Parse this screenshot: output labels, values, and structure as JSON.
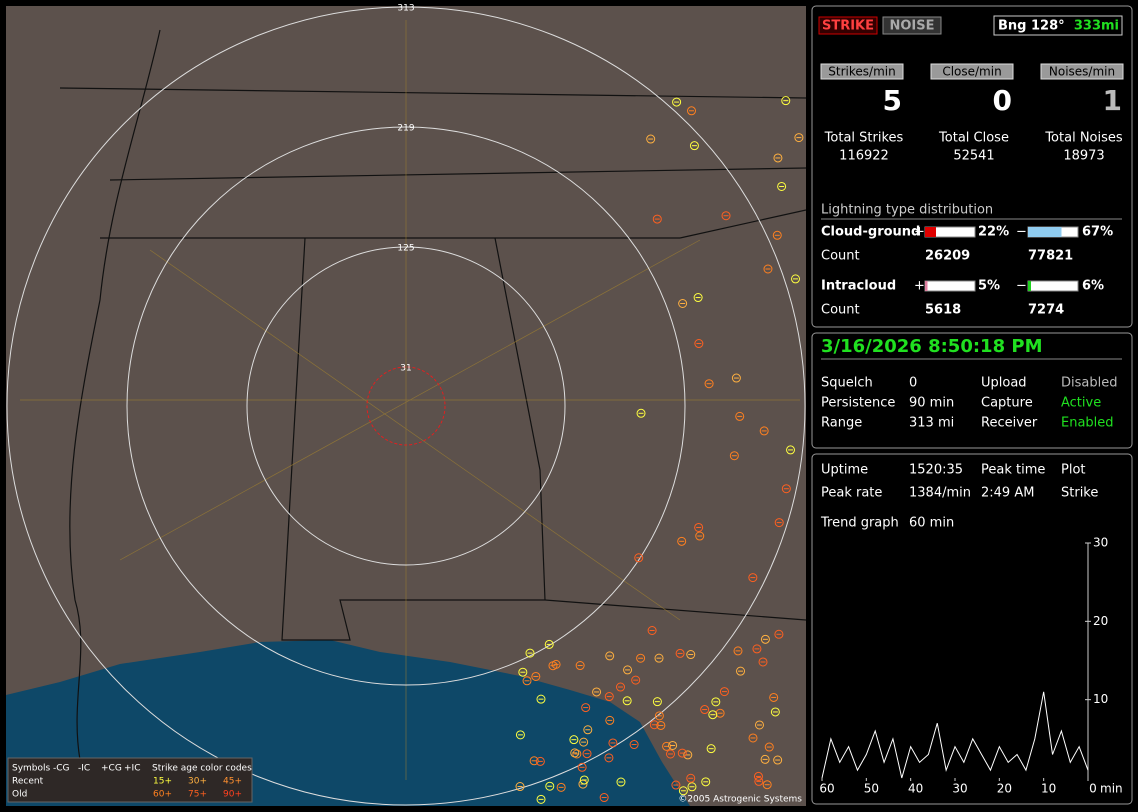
{
  "map": {
    "rings": [
      "313",
      "219",
      "125",
      "31"
    ],
    "legend": {
      "header": [
        "Symbols",
        "-CG",
        "-IC",
        "+CG",
        "+IC"
      ],
      "age_title": "Strike age color codes",
      "recent": "Recent",
      "old": "Old",
      "ages_recent": [
        "15+",
        "30+",
        "45+"
      ],
      "ages_old": [
        "60+",
        "75+",
        "90+"
      ]
    },
    "copyright": "©2005 Astrogenic Systems"
  },
  "status": {
    "strike": "STRIKE",
    "noise": "NOISE",
    "bearing": "Bng 128°",
    "distance": "333mi"
  },
  "rates": [
    {
      "label": "Strikes/min",
      "value": "5",
      "total_label": "Total Strikes",
      "total": "116922"
    },
    {
      "label": "Close/min",
      "value": "0",
      "total_label": "Total Close",
      "total": "52541"
    },
    {
      "label": "Noises/min",
      "value": "1",
      "total_label": "Total Noises",
      "total": "18973"
    }
  ],
  "distribution": {
    "title": "Lightning type distribution",
    "plus": "+",
    "minus": "−",
    "count_label": "Count",
    "rows": [
      {
        "name": "Cloud-ground",
        "pos": {
          "value": 22,
          "label": "22%"
        },
        "neg": {
          "value": 67,
          "label": "67%"
        },
        "pos_count": "26209",
        "neg_count": "77821"
      },
      {
        "name": "Intracloud",
        "pos": {
          "value": 5,
          "label": "5%"
        },
        "neg": {
          "value": 6,
          "label": "6%"
        },
        "pos_count": "5618",
        "neg_count": "7274"
      }
    ]
  },
  "datetime": "3/16/2026 8:50:18 PM",
  "settings": [
    [
      "Squelch",
      "0",
      "Upload",
      "Disabled"
    ],
    [
      "Persistence",
      "90 min",
      "Capture",
      "Active"
    ],
    [
      "Range",
      "313 mi",
      "Receiver",
      "Enabled"
    ]
  ],
  "stats": [
    [
      "Uptime",
      "1520:35",
      "Peak time",
      "Plot"
    ],
    [
      "Peak rate",
      "1384/min",
      "2:49 AM",
      "Strike"
    ]
  ],
  "trend": [
    "Trend graph",
    "60 min"
  ],
  "chart_data": {
    "type": "line",
    "x": [
      60,
      58,
      56,
      54,
      52,
      50,
      48,
      46,
      44,
      42,
      40,
      38,
      36,
      34,
      32,
      30,
      28,
      26,
      24,
      22,
      20,
      18,
      16,
      14,
      12,
      10,
      8,
      6,
      4,
      2,
      0
    ],
    "series": [
      {
        "color": "#ffffff",
        "values": [
          0,
          5,
          2,
          4,
          1,
          3,
          6,
          2,
          5,
          0,
          4,
          2,
          3,
          7,
          1,
          4,
          2,
          5,
          3,
          1,
          4,
          2,
          3,
          1,
          5,
          11,
          3,
          6,
          2,
          4,
          1
        ]
      }
    ],
    "xlim": [
      60,
      0
    ],
    "ylim": [
      0,
      30
    ],
    "yticks": [
      10,
      20,
      30
    ],
    "xticks": [
      60,
      50,
      40,
      30,
      20,
      10,
      0
    ],
    "xunit": "min"
  }
}
